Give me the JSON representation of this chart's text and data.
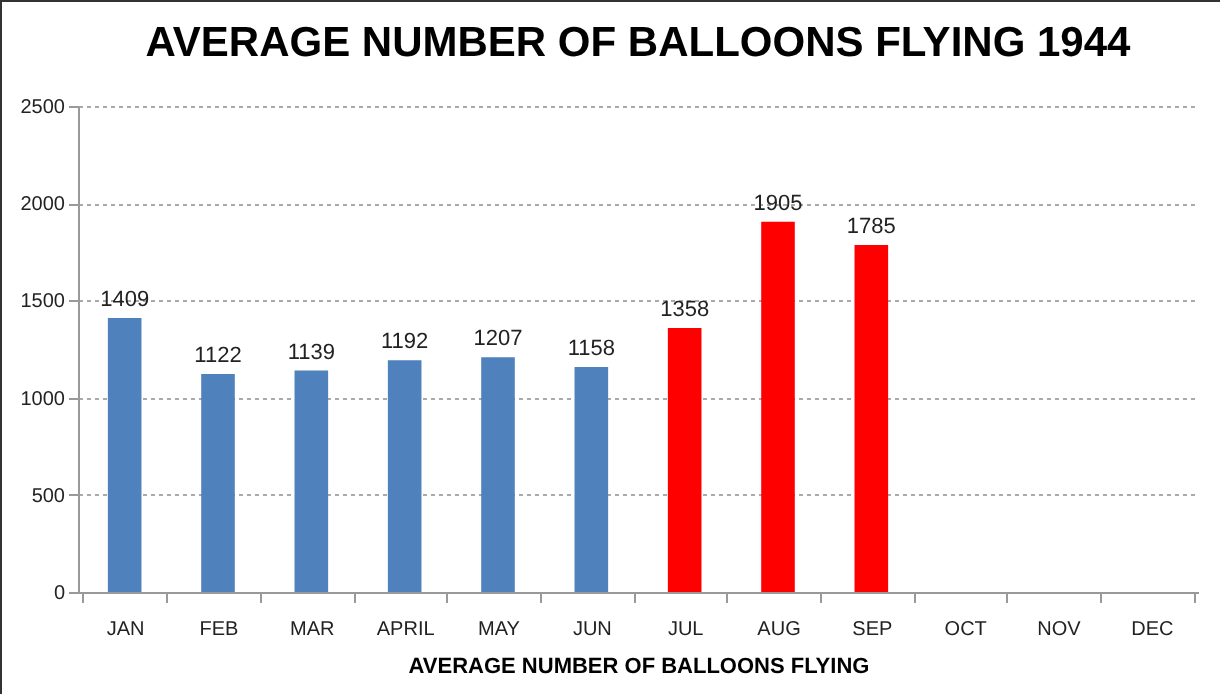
{
  "chart_data": {
    "type": "bar",
    "title": "AVERAGE NUMBER OF BALLOONS FLYING 1944",
    "xlabel": "AVERAGE NUMBER OF BALLOONS FLYING",
    "categories": [
      "JAN",
      "FEB",
      "MAR",
      "APRIL",
      "MAY",
      "JUN",
      "JUL",
      "AUG",
      "SEP",
      "OCT",
      "NOV",
      "DEC"
    ],
    "values": [
      1409,
      1122,
      1139,
      1192,
      1207,
      1158,
      1358,
      1905,
      1785,
      null,
      null,
      null
    ],
    "colors": [
      "#4f81bd",
      "#4f81bd",
      "#4f81bd",
      "#4f81bd",
      "#4f81bd",
      "#4f81bd",
      "#ff0000",
      "#ff0000",
      "#ff0000",
      "#ff0000",
      "#ff0000",
      "#ff0000"
    ],
    "ylim": [
      0,
      2500
    ],
    "yticks": [
      0,
      500,
      1000,
      1500,
      2000,
      2500
    ],
    "grid": "y",
    "data_labels": true
  }
}
